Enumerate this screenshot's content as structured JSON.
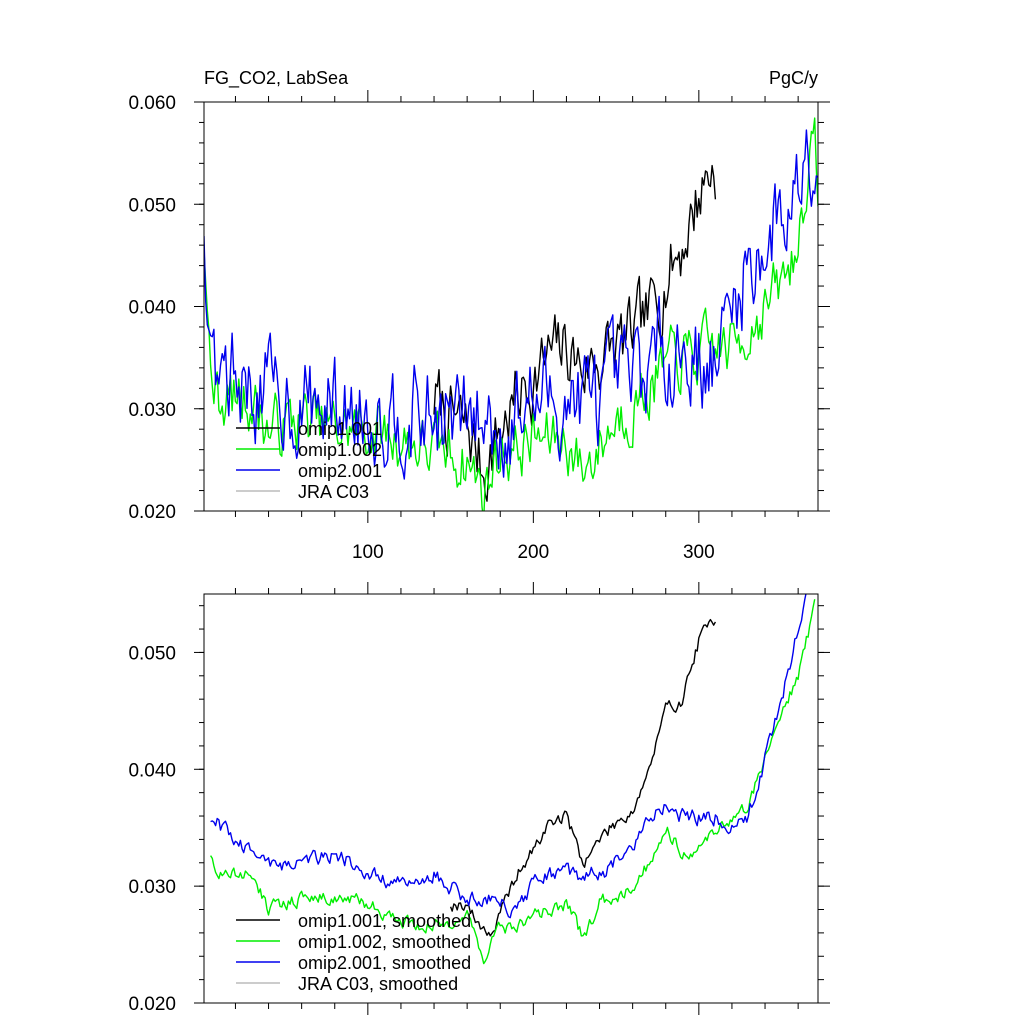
{
  "colors": {
    "omip1_001": "#000000",
    "omip1_002": "#00ee00",
    "omip2_001": "#0000ee",
    "jra": "#bbbbbb"
  },
  "chart_data": [
    {
      "type": "line",
      "title": "FG_CO2, LabSea",
      "units": "PgC/y",
      "xlim": [
        1,
        372
      ],
      "ylim": [
        0.02,
        0.06
      ],
      "xticks": [
        100,
        200,
        300
      ],
      "xtick_labels": [
        "100",
        "200",
        "300"
      ],
      "yticks": [
        0.02,
        0.03,
        0.04,
        0.05,
        0.06
      ],
      "ytick_labels": [
        "0.020",
        "0.030",
        "0.040",
        "0.050",
        "0.060"
      ],
      "legend": [
        "omip1.001",
        "omip1.002",
        "omip2.001",
        "JRA C03"
      ],
      "series": [
        {
          "name": "omip1.001",
          "color_key": "omip1_001",
          "noise": 0.003,
          "x": [
            140,
            150,
            160,
            170,
            180,
            190,
            200,
            210,
            220,
            230,
            240,
            250,
            260,
            270,
            280,
            290,
            300,
            305,
            310
          ],
          "values": [
            0.031,
            0.029,
            0.028,
            0.024,
            0.028,
            0.031,
            0.033,
            0.035,
            0.036,
            0.034,
            0.035,
            0.036,
            0.037,
            0.039,
            0.043,
            0.046,
            0.051,
            0.053,
            0.054
          ]
        },
        {
          "name": "omip1.002",
          "color_key": "omip1_002",
          "noise": 0.0025,
          "x": [
            1,
            5,
            10,
            30,
            40,
            60,
            80,
            100,
            120,
            140,
            160,
            170,
            180,
            190,
            200,
            220,
            230,
            250,
            270,
            280,
            290,
            300,
            310,
            320,
            330,
            340,
            350,
            360,
            365,
            370,
            372
          ],
          "values": [
            0.044,
            0.033,
            0.031,
            0.031,
            0.028,
            0.029,
            0.028,
            0.028,
            0.027,
            0.026,
            0.025,
            0.022,
            0.026,
            0.026,
            0.027,
            0.027,
            0.024,
            0.029,
            0.032,
            0.034,
            0.035,
            0.035,
            0.036,
            0.036,
            0.038,
            0.04,
            0.042,
            0.046,
            0.053,
            0.055,
            0.052
          ]
        },
        {
          "name": "omip2.001",
          "color_key": "omip2_001",
          "noise": 0.004,
          "x": [
            1,
            5,
            10,
            30,
            50,
            80,
            100,
            120,
            140,
            160,
            170,
            180,
            200,
            220,
            240,
            260,
            270,
            280,
            290,
            300,
            310,
            320,
            330,
            340,
            350,
            360,
            365,
            372
          ],
          "values": [
            0.044,
            0.035,
            0.034,
            0.032,
            0.031,
            0.03,
            0.03,
            0.03,
            0.029,
            0.029,
            0.029,
            0.028,
            0.031,
            0.031,
            0.031,
            0.033,
            0.034,
            0.036,
            0.036,
            0.035,
            0.034,
            0.04,
            0.044,
            0.046,
            0.049,
            0.052,
            0.057,
            0.056
          ]
        },
        {
          "name": "JRA C03",
          "color_key": "jra",
          "noise": 0,
          "x": [],
          "values": []
        }
      ]
    },
    {
      "type": "line",
      "title": "",
      "xlim": [
        1,
        372
      ],
      "ylim": [
        0.02,
        0.055
      ],
      "xticks": [
        100,
        200,
        300
      ],
      "xtick_labels": [
        "",
        "",
        ""
      ],
      "yticks": [
        0.02,
        0.03,
        0.04,
        0.05
      ],
      "ytick_labels": [
        "0.020",
        "0.030",
        "0.040",
        "0.050"
      ],
      "legend": [
        "omip1.001, smoothed",
        "omip1.002, smoothed",
        "omip2.001, smoothed",
        "JRA C03, smoothed"
      ],
      "series": [
        {
          "name": "omip1.001, smoothed",
          "color_key": "omip1_001",
          "noise": 0.0005,
          "x": [
            150,
            160,
            165,
            175,
            180,
            190,
            200,
            210,
            220,
            230,
            240,
            250,
            260,
            270,
            280,
            290,
            300,
            310
          ],
          "values": [
            0.0285,
            0.0285,
            0.027,
            0.026,
            0.0275,
            0.031,
            0.033,
            0.0355,
            0.036,
            0.032,
            0.034,
            0.0355,
            0.0365,
            0.04,
            0.045,
            0.046,
            0.051,
            0.053
          ]
        },
        {
          "name": "omip1.002, smoothed",
          "color_key": "omip1_002",
          "noise": 0.0005,
          "x": [
            5,
            10,
            30,
            40,
            60,
            80,
            100,
            120,
            140,
            160,
            170,
            180,
            190,
            200,
            220,
            230,
            240,
            260,
            270,
            280,
            290,
            300,
            310,
            320,
            330,
            340,
            350,
            360,
            370
          ],
          "values": [
            0.033,
            0.031,
            0.031,
            0.028,
            0.029,
            0.029,
            0.0285,
            0.027,
            0.0265,
            0.0275,
            0.024,
            0.0265,
            0.0265,
            0.0275,
            0.0285,
            0.0255,
            0.0285,
            0.03,
            0.032,
            0.035,
            0.033,
            0.033,
            0.035,
            0.0355,
            0.037,
            0.041,
            0.045,
            0.048,
            0.054
          ]
        },
        {
          "name": "omip2.001, smoothed",
          "color_key": "omip2_001",
          "noise": 0.0006,
          "x": [
            5,
            20,
            40,
            60,
            80,
            100,
            120,
            140,
            160,
            170,
            190,
            200,
            210,
            220,
            240,
            260,
            270,
            280,
            290,
            300,
            310,
            320,
            330,
            340,
            350,
            360,
            365
          ],
          "values": [
            0.036,
            0.034,
            0.032,
            0.032,
            0.033,
            0.031,
            0.03,
            0.031,
            0.029,
            0.029,
            0.028,
            0.03,
            0.031,
            0.031,
            0.031,
            0.033,
            0.036,
            0.037,
            0.036,
            0.036,
            0.036,
            0.035,
            0.036,
            0.041,
            0.046,
            0.052,
            0.055
          ]
        },
        {
          "name": "JRA C03, smoothed",
          "color_key": "jra",
          "noise": 0,
          "x": [],
          "values": []
        }
      ]
    }
  ]
}
